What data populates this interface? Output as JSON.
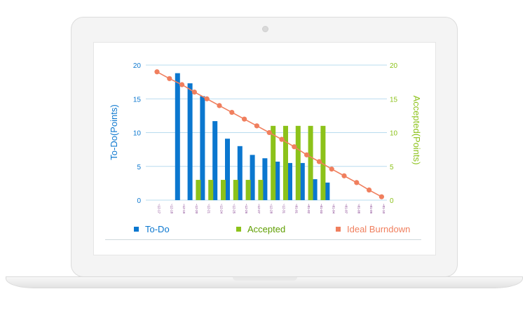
{
  "chart_data": {
    "type": "bar",
    "categories": [
      "12-17",
      "12-18",
      "12-19",
      "12-20",
      "12-21",
      "12-24",
      "12-25",
      "12-26",
      "12-27",
      "12-28",
      "12-31",
      "01-01",
      "01-02",
      "01-03",
      "01-04",
      "01-07",
      "01-08",
      "01-09",
      "01-10"
    ],
    "tick_labels": [
      "~12-17",
      "~12-18",
      "~12-19",
      "~12-20",
      "~12-21",
      "~12-24",
      "~12-25",
      "~12-26",
      "~12-27",
      "~12-28",
      "~12-31",
      "~01-01",
      "~01-02",
      "~01-03",
      "~01-04",
      "~01-07",
      "~01-08",
      "~01-09",
      "~01-10"
    ],
    "series": [
      {
        "name": "To-Do",
        "type": "bar",
        "axis": "left",
        "color": "#0b77cf",
        "values": [
          null,
          18.8,
          17.3,
          15.4,
          11.7,
          9.1,
          8.0,
          6.7,
          6.2,
          5.7,
          5.5,
          5.5,
          3.1,
          2.6,
          null,
          null,
          null,
          null,
          null
        ]
      },
      {
        "name": "Accepted",
        "type": "bar",
        "axis": "right",
        "color": "#8cc21a",
        "values": [
          null,
          null,
          null,
          3,
          3,
          3,
          3,
          3,
          3,
          11,
          11,
          11,
          11,
          11,
          null,
          null,
          null,
          null,
          null
        ]
      },
      {
        "name": "Ideal Burndown",
        "type": "line",
        "axis": "left",
        "color": "#f07f5e",
        "values": [
          19.0,
          18.0,
          17.1,
          16.0,
          15.0,
          14.0,
          13.0,
          12.0,
          11.0,
          10.0,
          9.0,
          7.9,
          6.7,
          5.7,
          4.6,
          3.6,
          2.6,
          1.5,
          0.5
        ]
      }
    ],
    "ylabel": "To-Do(Points)",
    "y2label": "Accepted(Points)",
    "ylim": [
      0,
      20
    ],
    "y2lim": [
      0,
      20
    ],
    "yticks": [
      "0",
      "5",
      "10",
      "15",
      "20"
    ],
    "grid": true,
    "legend_position": "bottom"
  },
  "legend": [
    {
      "label": "To-Do",
      "color": "#0b77cf"
    },
    {
      "label": "Accepted",
      "color": "#5f9e00",
      "swatch": "#8cc21a"
    },
    {
      "label": "Ideal Burndown",
      "color": "#f07f5e"
    }
  ],
  "colors": {
    "left_axis": "#0b77cf",
    "right_axis": "#8cc21a",
    "grid": "#b9dcef",
    "tick_text": "#7a2f86"
  }
}
